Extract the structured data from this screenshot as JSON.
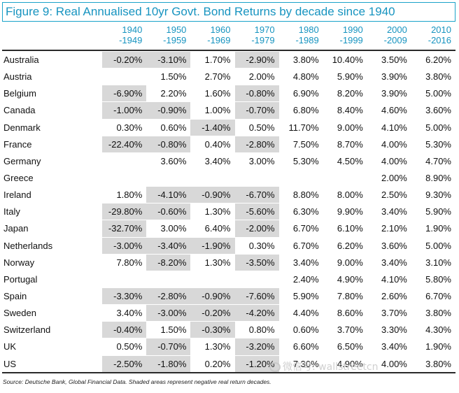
{
  "title": "Figure 9: Real Annualised 10yr Govt. Bond Returns by decade since 1940",
  "columns": [
    {
      "top": "1940",
      "bottom": "-1949"
    },
    {
      "top": "1950",
      "bottom": "-1959"
    },
    {
      "top": "1960",
      "bottom": "-1969"
    },
    {
      "top": "1970",
      "bottom": "-1979"
    },
    {
      "top": "1980",
      "bottom": "-1989"
    },
    {
      "top": "1990",
      "bottom": "-1999"
    },
    {
      "top": "2000",
      "bottom": "-2009"
    },
    {
      "top": "2010",
      "bottom": "-2016"
    }
  ],
  "rows": [
    {
      "country": "Australia",
      "values": [
        "-0.20%",
        "-3.10%",
        "1.70%",
        "-2.90%",
        "3.80%",
        "10.40%",
        "3.50%",
        "6.20%"
      ]
    },
    {
      "country": "Austria",
      "values": [
        "",
        "1.50%",
        "2.70%",
        "2.00%",
        "4.80%",
        "5.90%",
        "3.90%",
        "3.80%"
      ]
    },
    {
      "country": "Belgium",
      "values": [
        "-6.90%",
        "2.20%",
        "1.60%",
        "-0.80%",
        "6.90%",
        "8.20%",
        "3.90%",
        "5.00%"
      ]
    },
    {
      "country": "Canada",
      "values": [
        "-1.00%",
        "-0.90%",
        "1.00%",
        "-0.70%",
        "6.80%",
        "8.40%",
        "4.60%",
        "3.60%"
      ]
    },
    {
      "country": "Denmark",
      "values": [
        "0.30%",
        "0.60%",
        "-1.40%",
        "0.50%",
        "11.70%",
        "9.00%",
        "4.10%",
        "5.00%"
      ]
    },
    {
      "country": "France",
      "values": [
        "-22.40%",
        "-0.80%",
        "0.40%",
        "-2.80%",
        "7.50%",
        "8.70%",
        "4.00%",
        "5.30%"
      ]
    },
    {
      "country": "Germany",
      "values": [
        "",
        "3.60%",
        "3.40%",
        "3.00%",
        "5.30%",
        "4.50%",
        "4.00%",
        "4.70%"
      ]
    },
    {
      "country": "Greece",
      "values": [
        "",
        "",
        "",
        "",
        "",
        "",
        "2.00%",
        "8.90%"
      ]
    },
    {
      "country": "Ireland",
      "values": [
        "1.80%",
        "-4.10%",
        "-0.90%",
        "-6.70%",
        "8.80%",
        "8.00%",
        "2.50%",
        "9.30%"
      ]
    },
    {
      "country": "Italy",
      "values": [
        "-29.80%",
        "-0.60%",
        "1.30%",
        "-5.60%",
        "6.30%",
        "9.90%",
        "3.40%",
        "5.90%"
      ]
    },
    {
      "country": "Japan",
      "values": [
        "-32.70%",
        "3.00%",
        "6.40%",
        "-2.00%",
        "6.70%",
        "6.10%",
        "2.10%",
        "1.90%"
      ]
    },
    {
      "country": "Netherlands",
      "values": [
        "-3.00%",
        "-3.40%",
        "-1.90%",
        "0.30%",
        "6.70%",
        "6.20%",
        "3.60%",
        "5.00%"
      ]
    },
    {
      "country": "Norway",
      "values": [
        "7.80%",
        "-8.20%",
        "1.30%",
        "-3.50%",
        "3.40%",
        "9.00%",
        "3.40%",
        "3.10%"
      ]
    },
    {
      "country": "Portugal",
      "values": [
        "",
        "",
        "",
        "",
        "2.40%",
        "4.90%",
        "4.10%",
        "5.80%"
      ]
    },
    {
      "country": "Spain",
      "values": [
        "-3.30%",
        "-2.80%",
        "-0.90%",
        "-7.60%",
        "5.90%",
        "7.80%",
        "2.60%",
        "6.70%"
      ]
    },
    {
      "country": "Sweden",
      "values": [
        "3.40%",
        "-3.00%",
        "-0.20%",
        "-4.20%",
        "4.40%",
        "8.60%",
        "3.70%",
        "3.80%"
      ]
    },
    {
      "country": "Switzerland",
      "values": [
        "-0.40%",
        "1.50%",
        "-0.30%",
        "0.80%",
        "0.60%",
        "3.70%",
        "3.30%",
        "4.30%"
      ]
    },
    {
      "country": "UK",
      "values": [
        "0.50%",
        "-0.70%",
        "1.30%",
        "-3.20%",
        "6.60%",
        "6.50%",
        "3.40%",
        "1.90%"
      ]
    },
    {
      "country": "US",
      "values": [
        "-2.50%",
        "-1.80%",
        "0.20%",
        "-1.20%",
        "7.30%",
        "4.90%",
        "4.00%",
        "3.80%"
      ]
    }
  ],
  "source": "Source: Deutsche Bank, Global Financial Data. Shaded areas represent negative real return decades.",
  "watermark": "微信号: wallstreetcn",
  "colors": {
    "title_text": "#1794c0",
    "title_border": "#1aa3c9",
    "header_text": "#1794c0",
    "shade": "#d8d8d8",
    "rule": "#2a2a2a"
  }
}
